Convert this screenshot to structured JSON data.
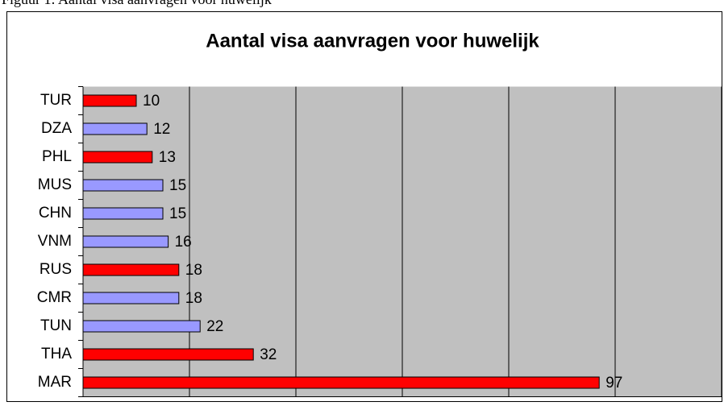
{
  "caption": "Figuur 1: Aantal visa aanvragen voor huwelijk",
  "chart_data": {
    "type": "hbar",
    "title": "Aantal visa aanvragen voor huwelijk",
    "categories": [
      "TUR",
      "DZA",
      "PHL",
      "MUS",
      "CHN",
      "VNM",
      "RUS",
      "CMR",
      "TUN",
      "THA",
      "MAR"
    ],
    "values": [
      10,
      12,
      13,
      15,
      15,
      16,
      18,
      18,
      22,
      32,
      97
    ],
    "colors": [
      "#ff0000",
      "#9999ff",
      "#ff0000",
      "#9999ff",
      "#9999ff",
      "#9999ff",
      "#ff0000",
      "#9999ff",
      "#9999ff",
      "#ff0000",
      "#ff0000"
    ],
    "xlim": [
      0,
      120
    ],
    "xticks": [
      0,
      20,
      40,
      60,
      80,
      100,
      120
    ],
    "grid": true
  }
}
